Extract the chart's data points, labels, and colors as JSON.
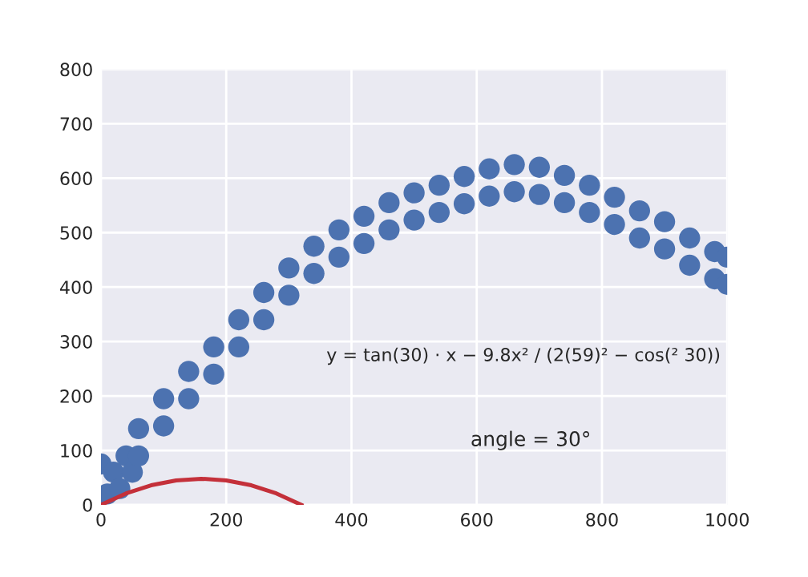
{
  "chart_data": {
    "type": "scatter",
    "xlim": [
      0,
      1000
    ],
    "ylim": [
      0,
      800
    ],
    "xticks": [
      0,
      200,
      400,
      600,
      800,
      1000
    ],
    "yticks": [
      0,
      100,
      200,
      300,
      400,
      500,
      600,
      700,
      800
    ],
    "grid": true,
    "marker": "circle",
    "series": [
      {
        "color": "#4c72b0",
        "x": [
          0,
          10,
          20,
          30,
          40,
          50,
          60,
          60,
          100,
          100,
          140,
          140,
          180,
          180,
          220,
          220,
          260,
          260,
          300,
          300,
          340,
          340,
          380,
          380,
          420,
          420,
          460,
          460,
          500,
          500,
          540,
          540,
          580,
          580,
          620,
          620,
          660,
          660,
          700,
          700,
          740,
          740,
          780,
          780,
          820,
          820,
          860,
          860,
          900,
          900,
          940,
          940,
          980,
          980,
          1000,
          1000
        ],
        "values": [
          75,
          20,
          60,
          30,
          90,
          60,
          140,
          90,
          195,
          145,
          245,
          195,
          290,
          240,
          340,
          290,
          390,
          340,
          435,
          385,
          475,
          425,
          505,
          455,
          530,
          480,
          555,
          505,
          573,
          523,
          587,
          537,
          603,
          553,
          617,
          567,
          625,
          575,
          620,
          570,
          605,
          555,
          587,
          537,
          565,
          515,
          540,
          490,
          520,
          470,
          490,
          440,
          465,
          415,
          455,
          405
        ]
      },
      {
        "type": "line",
        "color": "#c4303a",
        "marker": "none",
        "x": [
          0,
          40,
          80,
          120,
          160,
          200,
          240,
          280,
          320
        ],
        "values": [
          0,
          21,
          36,
          45,
          48,
          45,
          36,
          21,
          0
        ]
      }
    ],
    "annotations": [
      "y = tan(30) · x − 9.8x² / (2(59)² − cos(² 30))",
      "angle = 30°"
    ]
  }
}
